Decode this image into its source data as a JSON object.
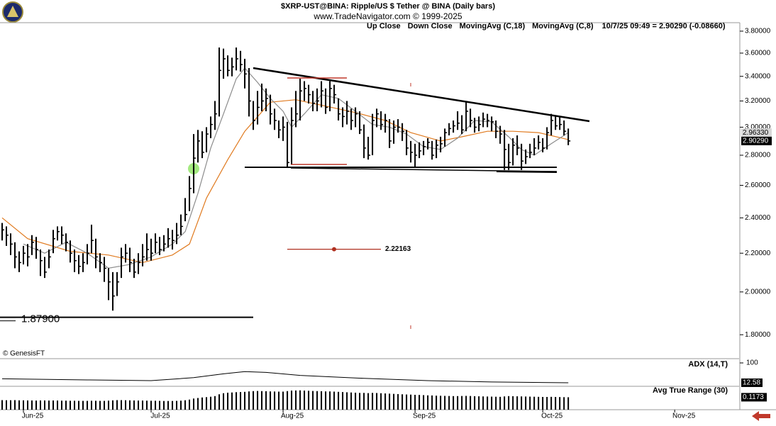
{
  "header": {
    "title": "$XRP-UST@BINA:  Ripple/US $ Tether @ BINA  (Daily bars)",
    "subtitle": "www.TradeNavigator.com © 1999-2025"
  },
  "chart_data": [
    {
      "type": "ohlc",
      "log_scale": true,
      "status": "10/7/25 09:49 = 2.90290 (-0.08660)",
      "last_label": "2.90290",
      "ma_label": "2.96330",
      "copyright": "© GenesisFT",
      "series": [
        {
          "name": "Up Close",
          "color": "#000000"
        },
        {
          "name": "Down Close",
          "color": "#000000"
        }
      ],
      "xlim": [
        -0.5,
        173.3
      ],
      "xticks": [
        {
          "value": 5,
          "label": "Jun-25"
        },
        {
          "value": 35,
          "label": "Jul-25"
        },
        {
          "value": 66,
          "label": "Aug-25"
        },
        {
          "value": 97,
          "label": "Sep-25"
        },
        {
          "value": 127,
          "label": "Oct-25"
        },
        {
          "value": 158,
          "label": "Nov-25"
        }
      ],
      "ylim": [
        1.7,
        3.88
      ],
      "yticks": [
        {
          "value": 1.8,
          "label": "1.80000"
        },
        {
          "value": 2.0,
          "label": "2.00000"
        },
        {
          "value": 2.2,
          "label": "2.20000"
        },
        {
          "value": 2.4,
          "label": "2.40000"
        },
        {
          "value": 2.6,
          "label": "2.60000"
        },
        {
          "value": 2.8,
          "label": "2.80000"
        },
        {
          "value": 3.0,
          "label": "3.00000"
        },
        {
          "value": 3.2,
          "label": "3.20000"
        },
        {
          "value": 3.4,
          "label": "3.40000"
        },
        {
          "value": 3.6,
          "label": "3.60000"
        },
        {
          "value": 3.8,
          "label": "3.80000"
        }
      ],
      "high": [
        2.37,
        2.35,
        2.31,
        2.26,
        2.21,
        2.24,
        2.25,
        2.3,
        2.29,
        2.22,
        2.18,
        2.22,
        2.33,
        2.35,
        2.35,
        2.31,
        2.27,
        2.22,
        2.19,
        2.2,
        2.25,
        2.36,
        2.28,
        2.2,
        2.18,
        2.12,
        2.1,
        2.1,
        2.23,
        2.25,
        2.23,
        2.17,
        2.2,
        2.25,
        2.31,
        2.28,
        2.31,
        2.29,
        2.3,
        2.34,
        2.33,
        2.37,
        2.42,
        2.52,
        2.66,
        2.95,
        2.98,
        2.97,
        3.0,
        3.08,
        3.2,
        3.65,
        3.64,
        3.58,
        3.56,
        3.65,
        3.62,
        3.55,
        3.47,
        3.2,
        3.28,
        3.34,
        3.3,
        3.25,
        3.14,
        3.05,
        3.08,
        3.04,
        3.15,
        3.28,
        3.38,
        3.36,
        3.33,
        3.28,
        3.3,
        3.36,
        3.3,
        3.36,
        3.33,
        3.22,
        3.15,
        3.2,
        3.14,
        3.15,
        3.12,
        3.02,
        2.93,
        3.1,
        3.14,
        3.12,
        3.1,
        3.06,
        3.05,
        3.06,
        3.03,
        2.98,
        2.9,
        2.88,
        2.89,
        2.9,
        2.92,
        2.9,
        2.91,
        2.93,
        2.99,
        3.03,
        3.05,
        3.12,
        3.09,
        3.19,
        3.14,
        3.07,
        3.08,
        3.11,
        3.1,
        3.08,
        3.05,
        3.01,
        2.98,
        2.88,
        2.92,
        2.94,
        2.88,
        2.84,
        2.88,
        2.92,
        2.94,
        2.92,
        3.0,
        3.1,
        3.09,
        3.08,
        3.05,
        2.99
      ],
      "low": [
        2.27,
        2.24,
        2.19,
        2.12,
        2.1,
        2.14,
        2.13,
        2.19,
        2.17,
        2.08,
        2.07,
        2.12,
        2.2,
        2.27,
        2.25,
        2.21,
        2.15,
        2.1,
        2.09,
        2.1,
        2.14,
        2.2,
        2.12,
        2.1,
        2.05,
        1.96,
        1.91,
        1.98,
        2.07,
        2.15,
        2.1,
        2.07,
        2.09,
        2.13,
        2.16,
        2.16,
        2.2,
        2.19,
        2.21,
        2.23,
        2.22,
        2.25,
        2.3,
        2.38,
        2.44,
        2.55,
        2.75,
        2.78,
        2.82,
        2.92,
        2.98,
        3.08,
        3.38,
        3.4,
        3.4,
        3.45,
        3.44,
        3.3,
        3.08,
        2.98,
        3.02,
        3.12,
        3.12,
        3.02,
        2.98,
        2.92,
        2.9,
        2.72,
        2.74,
        3.0,
        3.05,
        3.2,
        3.18,
        3.12,
        3.12,
        3.15,
        3.1,
        3.12,
        3.18,
        3.05,
        3.0,
        3.02,
        2.98,
        3.0,
        2.95,
        2.78,
        2.77,
        2.8,
        3.0,
        2.98,
        2.96,
        2.85,
        2.88,
        2.96,
        2.9,
        2.8,
        2.75,
        2.72,
        2.78,
        2.8,
        2.84,
        2.77,
        2.78,
        2.82,
        2.86,
        2.94,
        2.96,
        2.98,
        2.95,
        2.97,
        3.0,
        2.96,
        2.97,
        3.0,
        3.0,
        2.97,
        2.92,
        2.88,
        2.7,
        2.7,
        2.73,
        2.8,
        2.7,
        2.74,
        2.78,
        2.8,
        2.84,
        2.82,
        2.84,
        2.94,
        2.98,
        2.98,
        2.94,
        2.87
      ],
      "close": [
        2.33,
        2.3,
        2.25,
        2.18,
        2.15,
        2.2,
        2.18,
        2.26,
        2.22,
        2.16,
        2.1,
        2.18,
        2.28,
        2.32,
        2.3,
        2.26,
        2.2,
        2.16,
        2.13,
        2.15,
        2.2,
        2.27,
        2.18,
        2.15,
        2.12,
        2.05,
        1.98,
        2.05,
        2.18,
        2.2,
        2.15,
        2.1,
        2.15,
        2.18,
        2.22,
        2.2,
        2.26,
        2.22,
        2.25,
        2.28,
        2.27,
        2.3,
        2.35,
        2.42,
        2.58,
        2.78,
        2.9,
        2.82,
        2.95,
        3.02,
        3.1,
        3.45,
        3.55,
        3.45,
        3.48,
        3.55,
        3.5,
        3.42,
        3.2,
        3.05,
        3.15,
        3.2,
        3.22,
        3.1,
        3.05,
        2.98,
        3.0,
        2.75,
        3.05,
        3.1,
        3.28,
        3.3,
        3.25,
        3.18,
        3.2,
        3.28,
        3.15,
        3.3,
        3.25,
        3.1,
        3.08,
        3.12,
        3.05,
        3.1,
        2.98,
        2.85,
        2.8,
        3.05,
        3.1,
        3.02,
        3.05,
        2.9,
        3.0,
        3.0,
        2.97,
        2.85,
        2.82,
        2.8,
        2.83,
        2.86,
        2.89,
        2.8,
        2.87,
        2.88,
        2.96,
        2.99,
        3.01,
        3.03,
        2.98,
        3.12,
        3.05,
        3.0,
        3.02,
        3.06,
        3.05,
        3.04,
        2.97,
        2.95,
        2.84,
        2.75,
        2.87,
        2.85,
        2.76,
        2.79,
        2.82,
        2.85,
        2.89,
        2.85,
        2.96,
        3.05,
        3.01,
        3.02,
        2.97,
        2.9
      ],
      "overlays": [
        {
          "name": "MovingAvg (C,18)",
          "color": "#e07a1f",
          "x": [
            0,
            6,
            16,
            25,
            33,
            40,
            44,
            48,
            53,
            57,
            63,
            69,
            76,
            83,
            90,
            96,
            103,
            108,
            114,
            120,
            126,
            133
          ],
          "values": [
            2.4,
            2.28,
            2.21,
            2.19,
            2.15,
            2.19,
            2.25,
            2.52,
            2.77,
            2.97,
            3.19,
            3.21,
            3.16,
            3.11,
            3.05,
            2.96,
            2.9,
            2.93,
            2.97,
            2.97,
            2.96,
            2.91
          ]
        },
        {
          "name": "MovingAvg (C,8)",
          "color": "#8c8c8c",
          "x": [
            5,
            10,
            15,
            20,
            25,
            30,
            35,
            40,
            43,
            46,
            49,
            52,
            55,
            57,
            60,
            63,
            66,
            68,
            71,
            75,
            79,
            83,
            87,
            91,
            95,
            99,
            103,
            107,
            111,
            115,
            119,
            122,
            125,
            129,
            133
          ],
          "values": [
            2.25,
            2.2,
            2.26,
            2.2,
            2.12,
            2.14,
            2.18,
            2.25,
            2.32,
            2.55,
            2.85,
            3.1,
            3.38,
            3.47,
            3.35,
            3.22,
            3.12,
            3.0,
            3.1,
            3.25,
            3.22,
            3.12,
            3.02,
            3.0,
            2.95,
            2.86,
            2.84,
            2.92,
            3.05,
            3.04,
            2.93,
            2.84,
            2.8,
            2.88,
            2.96
          ]
        }
      ],
      "annotations": [
        {
          "value": 1.879,
          "label": "1.87900"
        },
        {
          "value": 2.22163,
          "label": "2.22163"
        }
      ]
    },
    {
      "type": "line",
      "title": "ADX (14,T)",
      "color": "#000000",
      "ylim": [
        0,
        100
      ],
      "yticks": [
        100
      ],
      "x": [
        0,
        20,
        35,
        45,
        52,
        57,
        62,
        70,
        85,
        100,
        115,
        133
      ],
      "values": [
        30,
        25,
        22,
        35,
        52,
        62,
        58,
        45,
        32,
        22,
        16,
        12.58
      ]
    },
    {
      "type": "bar",
      "title": "Avg True Range (30)",
      "color": "#000000",
      "ylim": [
        0,
        0.2
      ],
      "values": [
        0.09,
        0.089,
        0.089,
        0.09,
        0.088,
        0.088,
        0.087,
        0.087,
        0.086,
        0.087,
        0.087,
        0.086,
        0.087,
        0.086,
        0.085,
        0.085,
        0.084,
        0.084,
        0.083,
        0.083,
        0.083,
        0.084,
        0.084,
        0.083,
        0.083,
        0.085,
        0.088,
        0.09,
        0.09,
        0.089,
        0.088,
        0.087,
        0.086,
        0.086,
        0.085,
        0.084,
        0.084,
        0.083,
        0.082,
        0.082,
        0.082,
        0.083,
        0.085,
        0.089,
        0.095,
        0.105,
        0.11,
        0.115,
        0.118,
        0.122,
        0.128,
        0.145,
        0.155,
        0.16,
        0.162,
        0.165,
        0.166,
        0.168,
        0.172,
        0.175,
        0.176,
        0.175,
        0.174,
        0.172,
        0.171,
        0.17,
        0.17,
        0.175,
        0.18,
        0.181,
        0.182,
        0.18,
        0.178,
        0.176,
        0.175,
        0.174,
        0.172,
        0.172,
        0.17,
        0.168,
        0.166,
        0.164,
        0.162,
        0.16,
        0.158,
        0.158,
        0.156,
        0.158,
        0.157,
        0.155,
        0.153,
        0.151,
        0.149,
        0.147,
        0.145,
        0.143,
        0.142,
        0.14,
        0.139,
        0.137,
        0.135,
        0.134,
        0.132,
        0.131,
        0.13,
        0.129,
        0.128,
        0.128,
        0.129,
        0.13,
        0.129,
        0.127,
        0.126,
        0.125,
        0.124,
        0.123,
        0.122,
        0.121,
        0.125,
        0.128,
        0.127,
        0.126,
        0.125,
        0.124,
        0.123,
        0.122,
        0.121,
        0.12,
        0.12,
        0.121,
        0.12,
        0.119,
        0.118,
        0.1173
      ]
    }
  ]
}
